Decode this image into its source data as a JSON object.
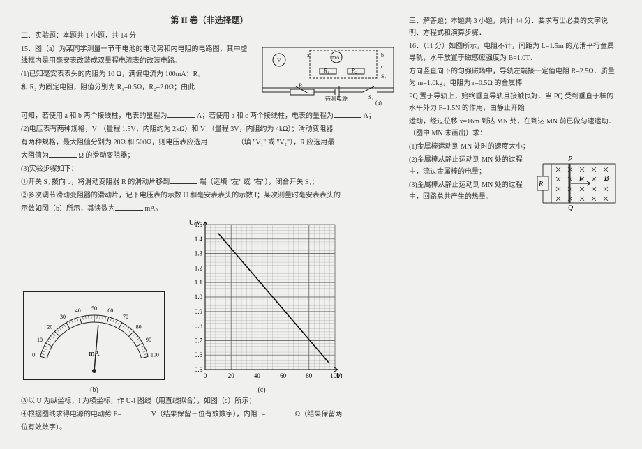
{
  "section_title": "第 II 卷（非选择题）",
  "left": {
    "heading": "二、实验题：本题共 1 小题，共 14 分",
    "q15_intro": "15．图（a）为某同学测量一节干电池的电动势和内电阻的电路图，其中虚线框内是用毫安表改装成双量程电流表的改装电路。",
    "p1": "(1)已知毫安表表头的内阻为 10 Ω，满偏电流为 100mA；R₁",
    "p1b": "和 R₂ 为固定电阻，阻值分别为 R₁=0.5Ω，R₂=2.0Ω；由此",
    "p2a": "可知，若使用 a 和 b 两个接线柱，电表的量程为",
    "p2b": "A；若使用 a 和 c 两个接线柱，电表的量程为",
    "p2c": "A；",
    "p3a": "(2)电压表有两种规格，V₁（量程 1.5V，内阻约为 2kΩ）和 V₂（量程 3V，内阻约为 4kΩ）；滑动变阻器",
    "p3b": "有两种规格，最大阻值分别为 20Ω 和 500Ω，则电压表应选用",
    "p3c": "（填 \"V₁\" 或 \"V₂\"），R 应选用最",
    "p3d": "大阻值为",
    "p3e": "Ω 的滑动变阻器；",
    "p4": "(3)实验步骤如下：",
    "p5a": "①开关 S₂ 拨向 b，将滑动变阻器 R 的滑动片移到",
    "p5b": "端（选填 \"左\" 或 \"右\"），闭合开关 S₁；",
    "p6a": "②多次调节滑动变阻器的滑动片，记下电压表的示数 U 和毫安表表头的示数 I；某次测量时毫安表表头的",
    "p6b": "示数如图（b）所示，其读数为",
    "p6c": "mA。",
    "p7": "③以 U 为纵坐标，I 为横坐标，作 U-I 图线（用直线拟合），如图（c）所示；",
    "p8a": "④根据图线求得电源的电动势 E=",
    "p8b": "V（结果保留三位有效数字），内阻 r=",
    "p8c": "Ω（结果保留两",
    "p8d": "位有效数字）。",
    "circuit": {
      "labels": {
        "v": "V",
        "ma": "mA",
        "r1": "R₁",
        "r2": "R₂",
        "s1": "S₁",
        "s2": "S₂",
        "r": "R",
        "src": "待测电源",
        "a": "a",
        "b": "b",
        "c": "c",
        "fig": "(a)"
      },
      "stroke": "#222"
    },
    "meter": {
      "unit": "mA",
      "ticks": [
        0,
        10,
        20,
        30,
        40,
        50,
        60,
        70,
        80,
        90,
        100
      ],
      "angle_start": -75,
      "angle_end": 75,
      "needle_angle": 5,
      "stroke": "#222",
      "fig": "(b)"
    },
    "chart": {
      "type": "line",
      "xlabel": "I/mA",
      "ylabel": "U/V",
      "xlim": [
        0,
        100
      ],
      "ylim": [
        0.5,
        1.5
      ],
      "xtick_step": 20,
      "xticks": [
        0,
        20,
        40,
        60,
        80,
        100
      ],
      "ytick_step": 0.1,
      "yticks": [
        0.5,
        0.6,
        0.7,
        0.8,
        0.9,
        1.0,
        1.1,
        1.2,
        1.3,
        1.4,
        1.5
      ],
      "minor_div": 5,
      "grid_color": "#555",
      "minor_grid_color": "#999",
      "line_color": "#000",
      "background": "#ffffff",
      "points": [
        [
          10,
          1.44
        ],
        [
          95,
          0.55
        ]
      ],
      "fig": "(c)"
    }
  },
  "right": {
    "heading": "三、解答题；本题共 3 小题，共计 44 分．要求写出必要的文字说明、方程式和演算步骤．",
    "q16a": "16．（11 分）如图所示，电阻不计，间距为 L=1.5m 的光滑平行金属导轨，水平放置于磁感应强度为 B=1.0T、",
    "q16b": "方向竖直向下的匀强磁场中，导轨左端接一定值电阻 R=2.5Ω．质量为 m=1.0kg，电阻为 r=0.5Ω 的金属棒",
    "q16c": "PQ 置于导轨上，始终垂直导轨且接触良好．当 PQ 受到垂直于棒的水平外力 F=1.5N 的作用，由静止开始",
    "q16d": "运动，经过位移 x=16m 到达 MN 处，在到达 MN 前已做匀速运动．（图中 MN 未画出）求：",
    "s1": "(1)金属棒运动到 MN 处时的速度大小；",
    "s2": "(2)金属棒从静止运动到 MN 处的过程中，流过金属棒的电量；",
    "s3": "(3)金属棒从静止运动到 MN 处的过程中，回路总共产生的热量。",
    "diagram": {
      "labels": {
        "p": "P",
        "q": "Q",
        "r": "R",
        "f": "F",
        "b": "B"
      },
      "stroke": "#333",
      "cross_color": "#333"
    }
  }
}
